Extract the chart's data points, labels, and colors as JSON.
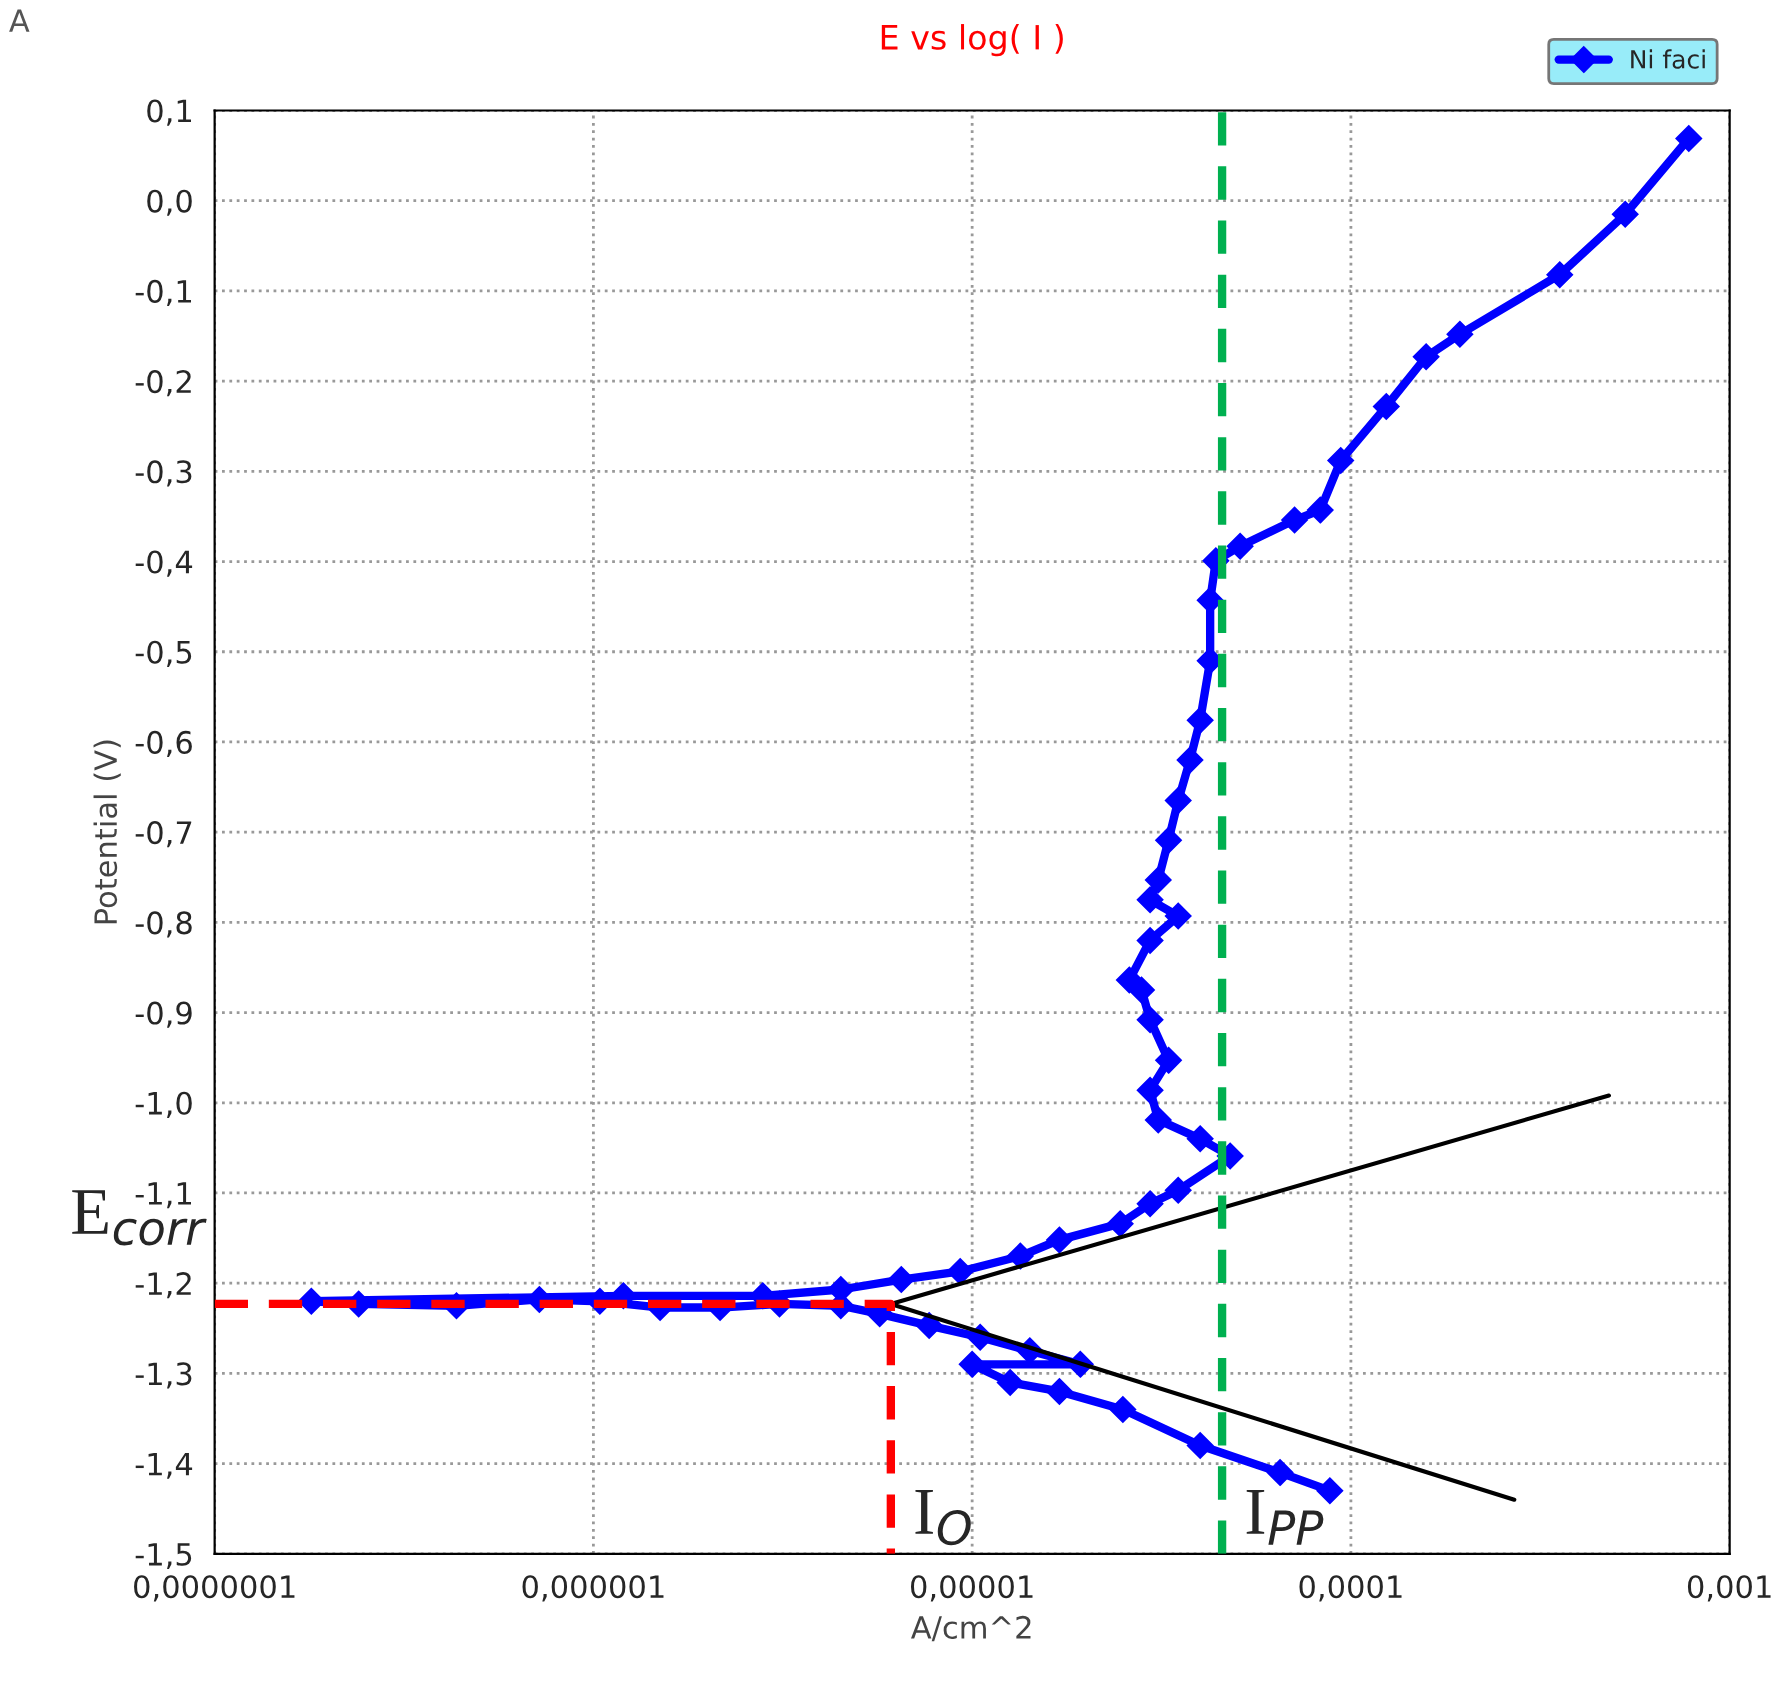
{
  "chart_data": {
    "type": "line",
    "title": "E vs log( I )",
    "xlabel": "A/cm^2",
    "ylabel": "Potential (V)",
    "log": "x",
    "grid": true,
    "legend": "top right",
    "xlim": [
      1e-07,
      0.001
    ],
    "ylim": [
      -1.5,
      0.1
    ],
    "xticks": [
      {
        "value": 1e-07,
        "label": "0,0000001"
      },
      {
        "value": 1e-06,
        "label": "0,000001"
      },
      {
        "value": 1e-05,
        "label": "0,00001"
      },
      {
        "value": 0.0001,
        "label": "0,0001"
      },
      {
        "value": 0.001,
        "label": "0,001"
      }
    ],
    "yticks": [
      {
        "value": -1.5,
        "label": "-1,5"
      },
      {
        "value": -1.4,
        "label": "-1,4"
      },
      {
        "value": -1.3,
        "label": "-1,3"
      },
      {
        "value": -1.2,
        "label": "-1,2"
      },
      {
        "value": -1.1,
        "label": "-1,1"
      },
      {
        "value": -1.0,
        "label": "-1,0"
      },
      {
        "value": -0.9,
        "label": "-0,9"
      },
      {
        "value": -0.8,
        "label": "-0,8"
      },
      {
        "value": -0.7,
        "label": "-0,7"
      },
      {
        "value": -0.6,
        "label": "-0,6"
      },
      {
        "value": -0.5,
        "label": "-0,5"
      },
      {
        "value": -0.4,
        "label": "-0,4"
      },
      {
        "value": -0.3,
        "label": "-0,3"
      },
      {
        "value": -0.2,
        "label": "-0,2"
      },
      {
        "value": -0.1,
        "label": "-0,1"
      },
      {
        "value": 0.0,
        "label": "0,0"
      },
      {
        "value": 0.1,
        "label": "0,1"
      }
    ],
    "series": [
      {
        "name": "Ni faci",
        "color": "#0000ff",
        "marker": "diamond",
        "line_style": "solid",
        "x": [
          8.8e-05,
          6.5e-05,
          4e-05,
          2.5e-05,
          1.7e-05,
          1.26e-05,
          1e-05,
          1.93e-05,
          1.42e-05,
          1.05e-05,
          7.7e-06,
          5.7e-06,
          4.5e-06,
          3.1e-06,
          2.16e-06,
          1.5e-06,
          1.04e-06,
          7.2e-07,
          4.35e-07,
          2.4e-07,
          1.8e-07,
          1.2e-06,
          2.8e-06,
          4.5e-06,
          6.5e-06,
          9.3e-06,
          1.34e-05,
          1.7e-05,
          2.46e-05,
          2.95e-05,
          3.5e-05,
          4.8e-05,
          4e-05,
          3.1e-05,
          2.95e-05,
          3.3e-05,
          2.95e-05,
          2.8e-05,
          2.6e-05,
          2.95e-05,
          3.5e-05,
          2.95e-05,
          3.1e-05,
          3.3e-05,
          3.5e-05,
          3.76e-05,
          4e-05,
          4.25e-05,
          4.25e-05,
          4.4e-05,
          5.1e-05,
          7.1e-05,
          8.3e-05,
          9.4e-05,
          0.000124,
          0.000158,
          0.000194,
          0.000356,
          0.00053,
          0.00078
        ],
        "values": [
          -1.43,
          -1.41,
          -1.38,
          -1.34,
          -1.32,
          -1.31,
          -1.29,
          -1.29,
          -1.275,
          -1.26,
          -1.247,
          -1.234,
          -1.225,
          -1.223,
          -1.227,
          -1.227,
          -1.22,
          -1.218,
          -1.225,
          -1.223,
          -1.22,
          -1.214,
          -1.214,
          -1.207,
          -1.196,
          -1.187,
          -1.17,
          -1.152,
          -1.134,
          -1.112,
          -1.097,
          -1.059,
          -1.04,
          -1.019,
          -0.986,
          -0.953,
          -0.908,
          -0.875,
          -0.864,
          -0.82,
          -0.793,
          -0.775,
          -0.753,
          -0.709,
          -0.665,
          -0.62,
          -0.576,
          -0.51,
          -0.443,
          -0.399,
          -0.383,
          -0.354,
          -0.343,
          -0.288,
          -0.228,
          -0.173,
          -0.148,
          -0.082,
          -0.015,
          0.069
        ]
      },
      {
        "color": "#000000",
        "marker": "none",
        "line_style": "solid",
        "x": [
          6.1e-06,
          0.00048
        ],
        "values": [
          -1.223,
          -0.992
        ]
      },
      {
        "color": "#000000",
        "marker": "none",
        "line_style": "solid",
        "x": [
          6.1e-06,
          0.00027
        ],
        "values": [
          -1.223,
          -1.44
        ]
      },
      {
        "color": "#ff0000",
        "marker": "none",
        "line_style": "dashed",
        "x": [
          1e-07,
          6.1e-06,
          6.1e-06
        ],
        "values": [
          -1.223,
          -1.223,
          -1.5
        ]
      }
    ],
    "ref_lines": [
      {
        "axis": "x",
        "value": 4.57e-05,
        "color": "#00b050",
        "line_style": "dashed"
      }
    ],
    "annotations": [
      "A",
      {
        "text": "E$_{corr}$",
        "x": 1e-07,
        "y": -1.223
      },
      {
        "text": "I$_{O}$",
        "x": 6.1e-06,
        "y": -1.5
      },
      {
        "text": "I$_{PP}$",
        "x": 4.57e-05,
        "y": -1.5
      }
    ]
  }
}
